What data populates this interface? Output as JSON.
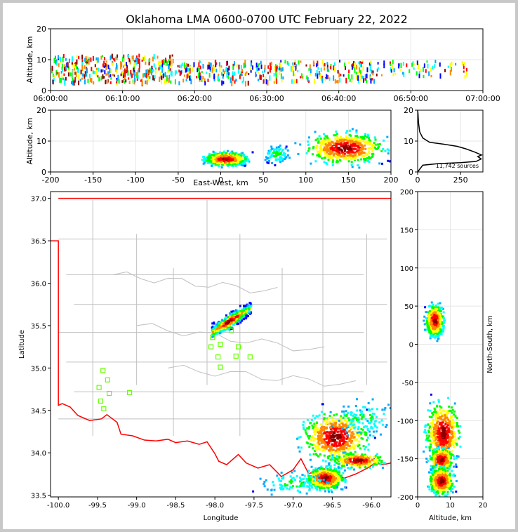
{
  "title": "Oklahoma LMA 0600-0700 UTC February 22, 2022",
  "colors": {
    "frame": "#c8c8c8",
    "state_border": "#ff0000",
    "county_lines": "#c0c0c0",
    "station_marker": "#66ff00",
    "source_colormap": [
      "#0000ff",
      "#00aaff",
      "#00ffff",
      "#00ff00",
      "#ffff00",
      "#ff8800",
      "#ff0000",
      "#8b0000"
    ]
  },
  "chart_data": [
    {
      "id": "time_altitude",
      "type": "scatter",
      "xlabel": "",
      "ylabel": "Altitude, km",
      "x_ticks": [
        "06:00:00",
        "06:10:00",
        "06:20:00",
        "06:30:00",
        "06:40:00",
        "06:50:00",
        "07:00:00"
      ],
      "xlim_minutes": [
        0,
        60
      ],
      "ylim": [
        0,
        20
      ],
      "y_ticks": [
        0,
        10,
        20
      ],
      "sources": [
        {
          "t_start": 0,
          "t_end": 17,
          "alt_min": 3,
          "alt_max": 12,
          "density": "high"
        },
        {
          "t_start": 17,
          "t_end": 30,
          "alt_min": 3,
          "alt_max": 10,
          "density": "medium"
        },
        {
          "t_start": 30,
          "t_end": 45,
          "alt_min": 3,
          "alt_max": 10,
          "density": "medium"
        },
        {
          "t_start": 45,
          "t_end": 58,
          "alt_min": 5,
          "alt_max": 10,
          "density": "low"
        }
      ]
    },
    {
      "id": "ew_altitude",
      "type": "scatter",
      "xlabel": "East-West, km",
      "ylabel": "Altitude, km",
      "xlim": [
        -200,
        200
      ],
      "x_ticks": [
        -200,
        -150,
        -100,
        -50,
        0,
        50,
        100,
        150,
        200
      ],
      "ylim": [
        0,
        20
      ],
      "y_ticks": [
        0,
        10,
        20
      ],
      "clusters": [
        {
          "x_center": 5,
          "x_spread": 17,
          "alt_center": 4.5,
          "alt_spread": 1.5,
          "density": "high"
        },
        {
          "x_center": 65,
          "x_spread": 10,
          "alt_center": 6,
          "alt_spread": 2,
          "density": "low"
        },
        {
          "x_center": 145,
          "x_spread": 32,
          "alt_center": 8,
          "alt_spread": 3.5,
          "density": "high"
        }
      ]
    },
    {
      "id": "altitude_histogram",
      "type": "line",
      "xlim": [
        0,
        380
      ],
      "x_ticks": [
        0,
        250
      ],
      "ylim": [
        0,
        20
      ],
      "y_ticks": [
        0,
        10,
        20
      ],
      "annotation": "11,742 sources",
      "profile": [
        {
          "count": 0,
          "alt": 0
        },
        {
          "count": 30,
          "alt": 2.2
        },
        {
          "count": 120,
          "alt": 2.7
        },
        {
          "count": 250,
          "alt": 3.0
        },
        {
          "count": 340,
          "alt": 3.4
        },
        {
          "count": 370,
          "alt": 4.2
        },
        {
          "count": 350,
          "alt": 5.0
        },
        {
          "count": 372,
          "alt": 5.5
        },
        {
          "count": 330,
          "alt": 6.5
        },
        {
          "count": 280,
          "alt": 7.5
        },
        {
          "count": 230,
          "alt": 8.3
        },
        {
          "count": 150,
          "alt": 9.0
        },
        {
          "count": 70,
          "alt": 9.6
        },
        {
          "count": 30,
          "alt": 11
        },
        {
          "count": 12,
          "alt": 13
        },
        {
          "count": 5,
          "alt": 16
        },
        {
          "count": 2,
          "alt": 19
        },
        {
          "count": 0,
          "alt": 20
        }
      ]
    },
    {
      "id": "plan_view",
      "type": "scatter",
      "xlabel": "Longitude",
      "ylabel": "Latitude",
      "xlim": [
        -100.1,
        -95.75
      ],
      "x_ticks": [
        -100.0,
        -99.5,
        -99.0,
        -98.5,
        -98.0,
        -97.5,
        -97.0,
        -96.5,
        -96.0
      ],
      "x_tick_labels": [
        "-100.0",
        "-99.5",
        "-99.0",
        "-98.5",
        "-98.0",
        "-97.5",
        "-97.0",
        "-96.5",
        "-96.0"
      ],
      "ylim": [
        33.48,
        37.08
      ],
      "y_ticks": [
        33.5,
        34.0,
        34.5,
        35.0,
        35.5,
        36.0,
        36.5,
        37.0
      ],
      "y_tick_labels": [
        "33.5",
        "34.0",
        "34.5",
        "35.0",
        "35.5",
        "36.0",
        "36.5",
        "37.0"
      ],
      "stations": [
        [
          -99.43,
          34.97
        ],
        [
          -99.37,
          34.86
        ],
        [
          -99.48,
          34.77
        ],
        [
          -99.35,
          34.7
        ],
        [
          -99.46,
          34.61
        ],
        [
          -99.42,
          34.52
        ],
        [
          -99.09,
          34.71
        ],
        [
          -98.03,
          35.36
        ],
        [
          -98.05,
          35.25
        ],
        [
          -97.93,
          35.28
        ],
        [
          -97.96,
          35.13
        ],
        [
          -97.93,
          35.01
        ],
        [
          -97.79,
          35.44
        ],
        [
          -97.7,
          35.25
        ],
        [
          -97.73,
          35.14
        ],
        [
          -97.55,
          35.13
        ]
      ],
      "clusters": [
        {
          "lon_start": -98.05,
          "lat_start": 35.43,
          "lon_end": -97.55,
          "lat_end": 35.72,
          "width": 0.06,
          "density": "high"
        },
        {
          "lon_center": -96.47,
          "lat_center": 34.2,
          "lon_spread": 0.28,
          "lat_spread": 0.2,
          "density": "high"
        },
        {
          "lon_center": -96.18,
          "lat_center": 33.92,
          "lon_spread": 0.22,
          "lat_spread": 0.06,
          "density": "medium"
        },
        {
          "lon_center": -96.6,
          "lat_center": 33.71,
          "lon_spread": 0.16,
          "lat_spread": 0.09,
          "density": "high"
        },
        {
          "lon_center": -96.1,
          "lat_center": 34.42,
          "lon_spread": 0.28,
          "lat_spread": 0.14,
          "density": "low"
        },
        {
          "lon_center": -97.0,
          "lat_center": 33.65,
          "lon_spread": 0.35,
          "lat_spread": 0.1,
          "density": "low"
        }
      ],
      "state_border": [
        [
          -100.1,
          36.5
        ],
        [
          -100.0,
          36.5
        ],
        [
          -100.0,
          34.56
        ],
        [
          -99.95,
          34.58
        ],
        [
          -99.85,
          34.54
        ],
        [
          -99.75,
          34.44
        ],
        [
          -99.6,
          34.38
        ],
        [
          -99.45,
          34.4
        ],
        [
          -99.38,
          34.45
        ],
        [
          -99.25,
          34.36
        ],
        [
          -99.2,
          34.22
        ],
        [
          -99.05,
          34.2
        ],
        [
          -98.9,
          34.15
        ],
        [
          -98.75,
          34.14
        ],
        [
          -98.6,
          34.16
        ],
        [
          -98.5,
          34.12
        ],
        [
          -98.35,
          34.14
        ],
        [
          -98.2,
          34.1
        ],
        [
          -98.1,
          34.13
        ],
        [
          -98.0,
          33.99
        ],
        [
          -97.95,
          33.9
        ],
        [
          -97.85,
          33.86
        ],
        [
          -97.7,
          33.98
        ],
        [
          -97.6,
          33.88
        ],
        [
          -97.45,
          33.82
        ],
        [
          -97.3,
          33.86
        ],
        [
          -97.15,
          33.72
        ],
        [
          -97.0,
          33.8
        ],
        [
          -96.9,
          33.93
        ],
        [
          -96.8,
          33.75
        ],
        [
          -96.65,
          33.83
        ],
        [
          -96.5,
          33.77
        ],
        [
          -96.35,
          33.7
        ],
        [
          -96.2,
          33.75
        ],
        [
          -96.05,
          33.82
        ],
        [
          -95.95,
          33.88
        ],
        [
          -95.85,
          33.86
        ],
        [
          -95.75,
          33.88
        ]
      ]
    },
    {
      "id": "altitude_ns",
      "type": "scatter",
      "xlabel": "Altitude, km",
      "ylabel": "North-South, km",
      "xlim": [
        0,
        20
      ],
      "x_ticks": [
        0,
        10,
        20
      ],
      "ylim": [
        -200,
        200
      ],
      "y_ticks": [
        -200,
        -150,
        -100,
        -50,
        0,
        50,
        100,
        150,
        200
      ],
      "clusters": [
        {
          "alt_center": 5,
          "alt_spread": 1.8,
          "ns_center": 32,
          "ns_spread": 14,
          "density": "high"
        },
        {
          "alt_center": 7.5,
          "alt_spread": 3.5,
          "ns_center": -115,
          "ns_spread": 28,
          "density": "high"
        },
        {
          "alt_center": 7,
          "alt_spread": 2.5,
          "ns_center": -150,
          "ns_spread": 10,
          "density": "medium"
        },
        {
          "alt_center": 7,
          "alt_spread": 2.5,
          "ns_center": -178,
          "ns_spread": 12,
          "density": "high"
        }
      ]
    }
  ]
}
